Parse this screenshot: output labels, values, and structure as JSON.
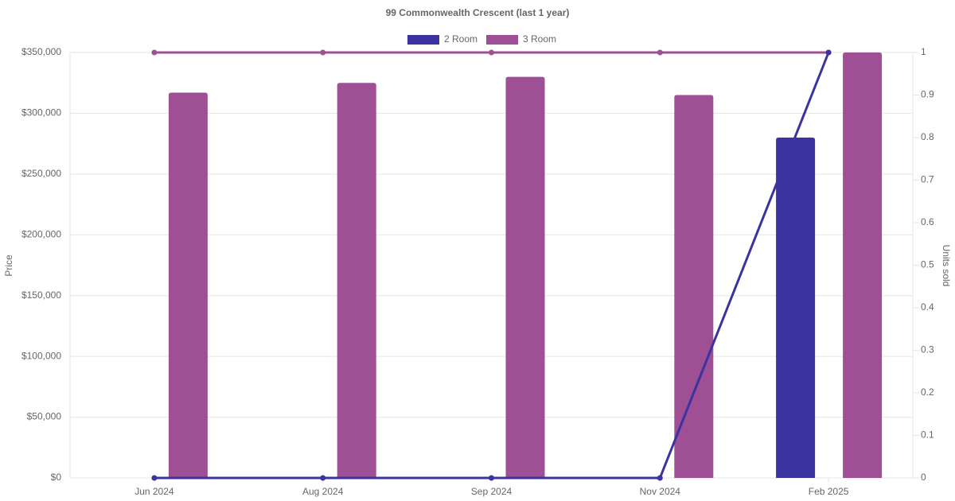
{
  "chart_data": {
    "type": "bar",
    "title": "99 Commonwealth Crescent (last 1 year)",
    "categories": [
      "Jun 2024",
      "Aug 2024",
      "Sep 2024",
      "Nov 2024",
      "Feb 2025"
    ],
    "y_label": "Price",
    "y2_label": "Units sold",
    "series": [
      {
        "name": "2 Room",
        "color": "#3a33a0",
        "values": [
          null,
          null,
          null,
          null,
          280000
        ],
        "units_sold": [
          0,
          0,
          0,
          0,
          1
        ]
      },
      {
        "name": "3 Room",
        "color": "#9f4f93",
        "values": [
          317000,
          325000,
          330000,
          315000,
          350000
        ],
        "units_sold": [
          1,
          1,
          1,
          1,
          1
        ]
      }
    ],
    "ylim": [
      0,
      350000
    ],
    "yticks": [
      {
        "value": 0,
        "label": "$0"
      },
      {
        "value": 50000,
        "label": "$50,000"
      },
      {
        "value": 100000,
        "label": "$100,000"
      },
      {
        "value": 150000,
        "label": "$150,000"
      },
      {
        "value": 200000,
        "label": "$200,000"
      },
      {
        "value": 250000,
        "label": "$250,000"
      },
      {
        "value": 300000,
        "label": "$300,000"
      },
      {
        "value": 350000,
        "label": "$350,000"
      }
    ],
    "y2lim": [
      0,
      1
    ],
    "y2ticks": [
      0,
      0.1,
      0.2,
      0.3,
      0.4,
      0.5,
      0.6,
      0.7,
      0.8,
      0.9,
      1
    ],
    "grid": true,
    "legend": "top"
  }
}
